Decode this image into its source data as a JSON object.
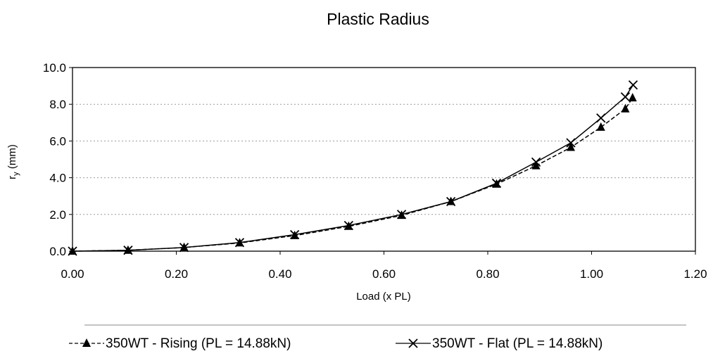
{
  "chart_data": {
    "type": "line",
    "title": "Plastic Radius",
    "xlabel": "Load (x PL)",
    "ylabel_main": "r",
    "ylabel_sub": "y",
    "ylabel_unit": " (mm)",
    "xlim": [
      0,
      1.2
    ],
    "ylim": [
      0,
      10
    ],
    "xticks": [
      "0.00",
      "0.20",
      "0.40",
      "0.60",
      "0.80",
      "1.00",
      "1.20"
    ],
    "yticks": [
      "0.0",
      "2.0",
      "4.0",
      "6.0",
      "8.0",
      "10.0"
    ],
    "grid": "horizontal",
    "legend_position": "bottom",
    "series": [
      {
        "name": "350WT - Rising (PL = 14.88kN)",
        "marker": "triangle",
        "line_style": "dashed",
        "color": "#000000",
        "x": [
          0.0,
          0.107,
          0.215,
          0.322,
          0.428,
          0.532,
          0.634,
          0.729,
          0.817,
          0.893,
          0.96,
          1.018,
          1.065,
          1.079
        ],
        "y": [
          0.0,
          0.05,
          0.2,
          0.45,
          0.85,
          1.35,
          1.95,
          2.7,
          3.65,
          4.65,
          5.65,
          6.75,
          7.75,
          8.35
        ]
      },
      {
        "name": "350WT - Flat (PL = 14.88kN)",
        "marker": "x",
        "line_style": "solid",
        "color": "#000000",
        "x": [
          0.0,
          0.107,
          0.215,
          0.322,
          0.428,
          0.532,
          0.634,
          0.729,
          0.817,
          0.893,
          0.96,
          1.018,
          1.065,
          1.08
        ],
        "y": [
          0.0,
          0.05,
          0.2,
          0.47,
          0.9,
          1.4,
          2.0,
          2.7,
          3.7,
          4.85,
          5.9,
          7.25,
          8.4,
          9.05
        ]
      }
    ]
  }
}
